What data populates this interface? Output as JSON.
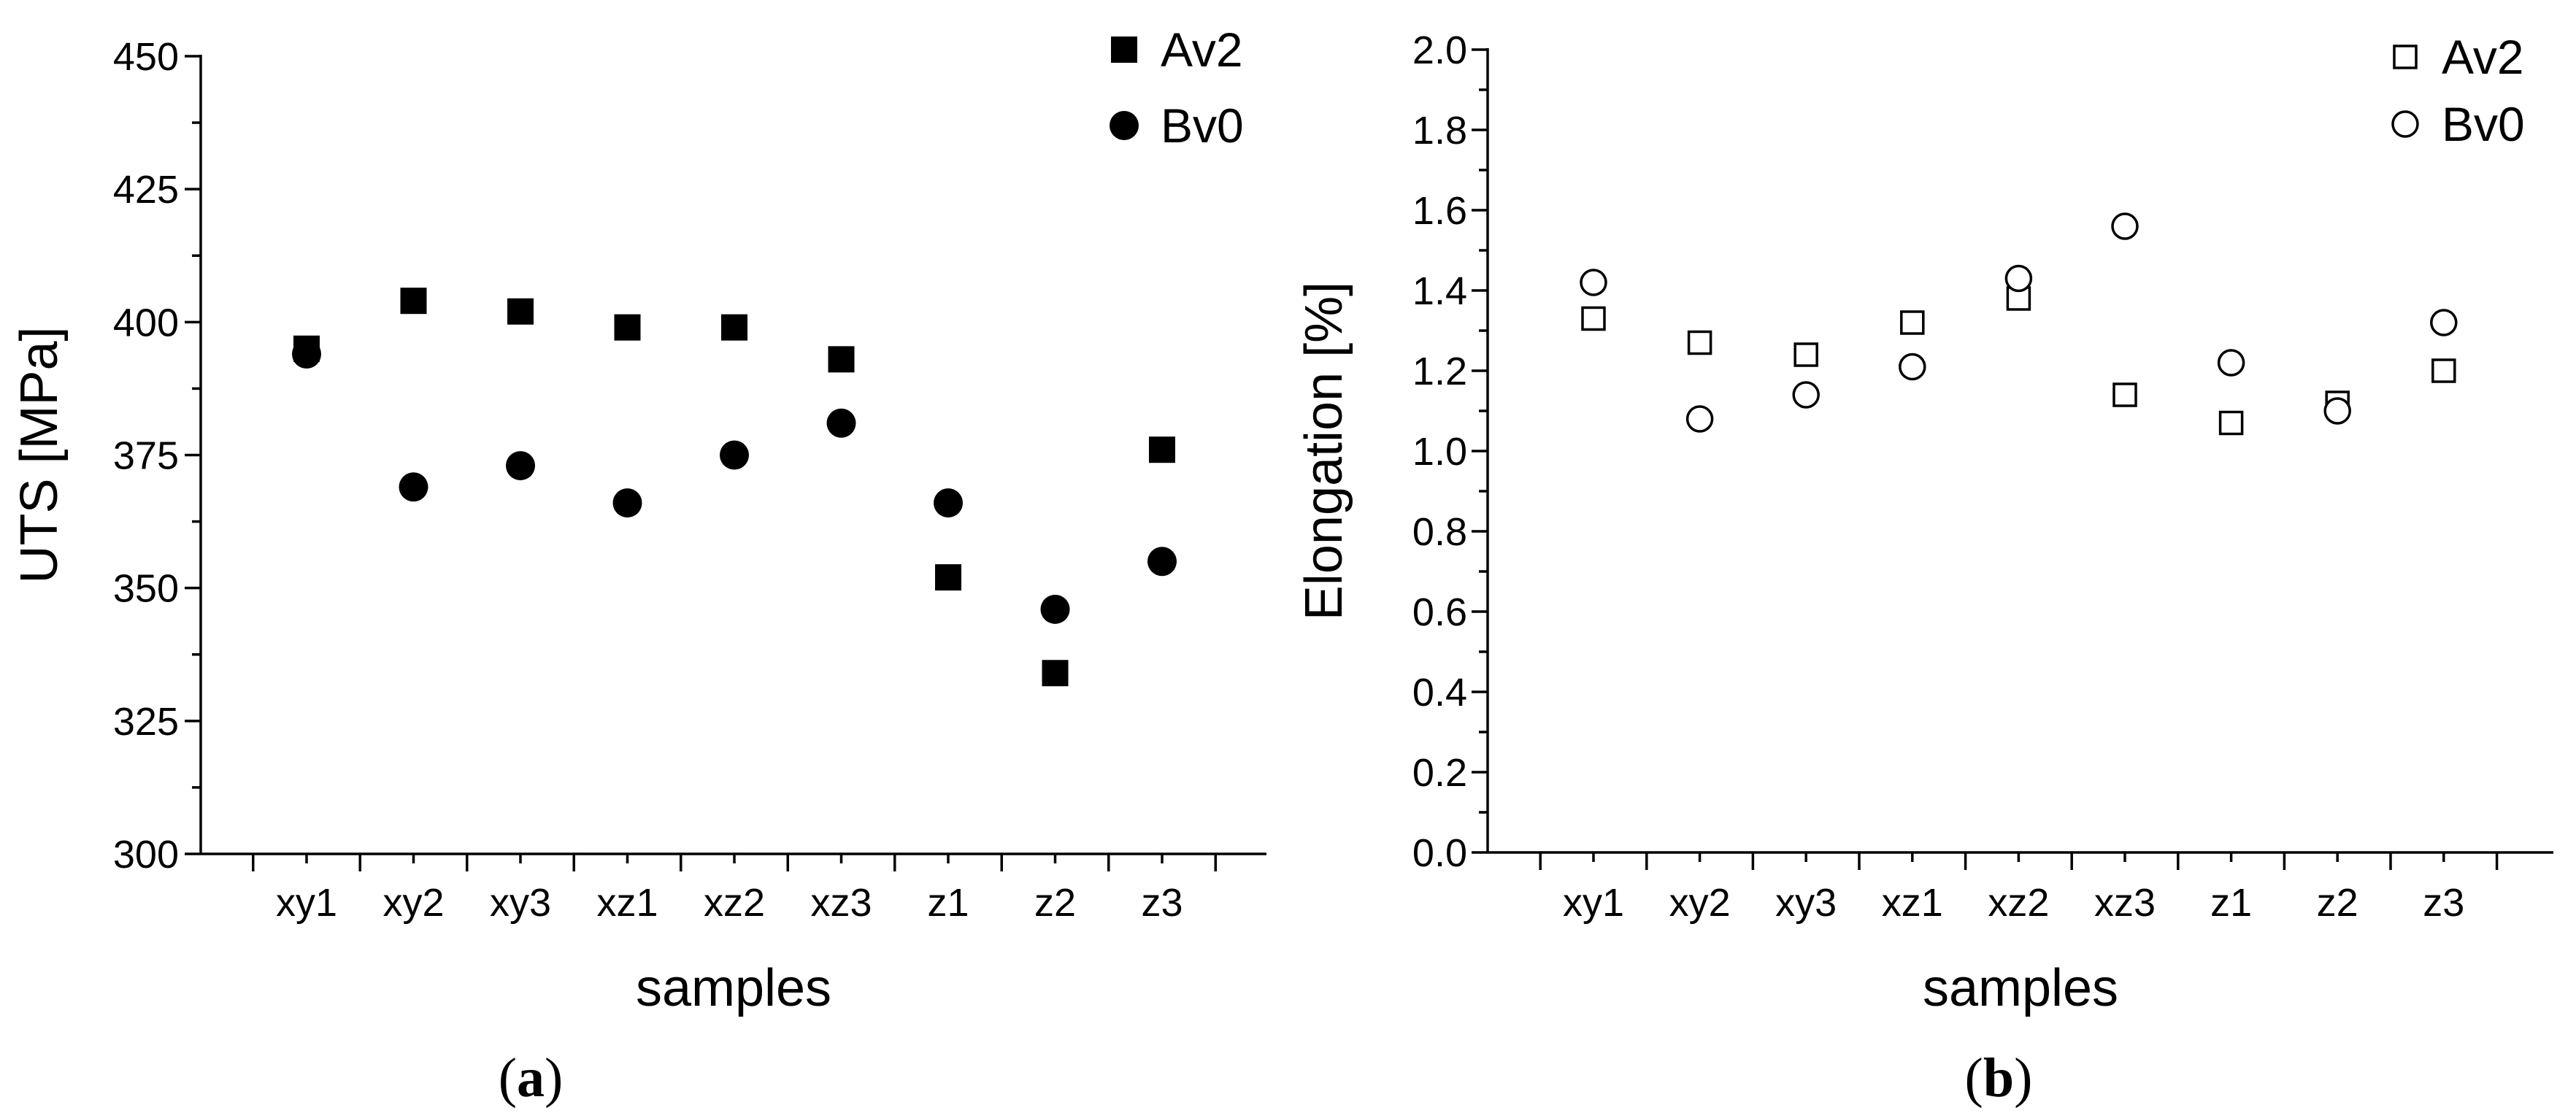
{
  "chart_data": [
    {
      "type": "scatter",
      "panel": "a",
      "caption": "a",
      "ylabel": "UTS [MPa]",
      "xlabel": "samples",
      "categories": [
        "xy1",
        "xy2",
        "xy3",
        "xz1",
        "xz2",
        "xz3",
        "z1",
        "z2",
        "z3"
      ],
      "ylim": [
        300,
        450
      ],
      "yticks": [
        300,
        325,
        350,
        375,
        400,
        425,
        450
      ],
      "ytick_labels": [
        "300",
        "325",
        "350",
        "375",
        "400",
        "425",
        "450"
      ],
      "series": [
        {
          "name": "Av2",
          "marker": "square",
          "filled": true,
          "values": [
            395,
            404,
            402,
            399,
            399,
            393,
            352,
            334,
            376
          ]
        },
        {
          "name": "Bv0",
          "marker": "circle",
          "filled": true,
          "values": [
            394,
            369,
            373,
            366,
            375,
            381,
            366,
            346,
            355
          ]
        }
      ],
      "legend_position": "top-right",
      "grid": false
    },
    {
      "type": "scatter",
      "panel": "b",
      "caption": "b",
      "ylabel": "Elongation [%]",
      "xlabel": "samples",
      "categories": [
        "xy1",
        "xy2",
        "xy3",
        "xz1",
        "xz2",
        "xz3",
        "z1",
        "z2",
        "z3"
      ],
      "ylim": [
        0.0,
        2.0
      ],
      "yticks": [
        0.0,
        0.2,
        0.4,
        0.6,
        0.8,
        1.0,
        1.2,
        1.4,
        1.6,
        1.8,
        2.0
      ],
      "ytick_labels": [
        "0.0",
        "0.2",
        "0.4",
        "0.6",
        "0.8",
        "1.0",
        "1.2",
        "1.4",
        "1.6",
        "1.8",
        "2.0"
      ],
      "series": [
        {
          "name": "Av2",
          "marker": "square",
          "filled": false,
          "values": [
            1.33,
            1.27,
            1.24,
            1.32,
            1.38,
            1.14,
            1.07,
            1.12,
            1.2
          ]
        },
        {
          "name": "Bv0",
          "marker": "circle",
          "filled": false,
          "values": [
            1.42,
            1.08,
            1.14,
            1.21,
            1.43,
            1.56,
            1.22,
            1.1,
            1.32
          ]
        }
      ],
      "legend_position": "top-right",
      "grid": false
    }
  ]
}
